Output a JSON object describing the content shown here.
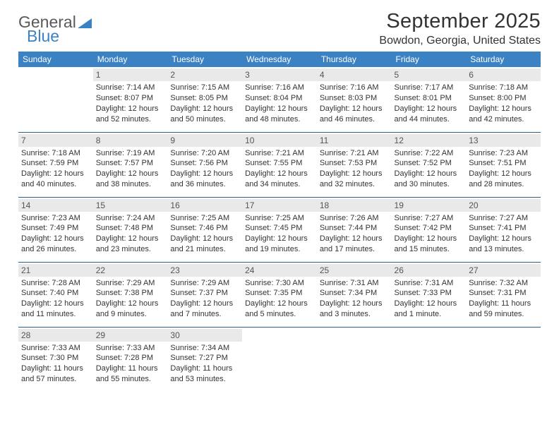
{
  "logo": {
    "line1": "General",
    "line2": "Blue"
  },
  "header": {
    "month_title": "September 2025",
    "location": "Bowdon, Georgia, United States"
  },
  "colors": {
    "header_bg": "#3b82c4",
    "header_text": "#ffffff",
    "divider": "#2f5d8a",
    "daynum_bg": "#e9e9e9",
    "text": "#333333"
  },
  "day_labels": [
    "Sunday",
    "Monday",
    "Tuesday",
    "Wednesday",
    "Thursday",
    "Friday",
    "Saturday"
  ],
  "weeks": [
    [
      {
        "n": "",
        "sr": "",
        "ss": "",
        "dl": ""
      },
      {
        "n": "1",
        "sr": "Sunrise: 7:14 AM",
        "ss": "Sunset: 8:07 PM",
        "dl": "Daylight: 12 hours and 52 minutes."
      },
      {
        "n": "2",
        "sr": "Sunrise: 7:15 AM",
        "ss": "Sunset: 8:05 PM",
        "dl": "Daylight: 12 hours and 50 minutes."
      },
      {
        "n": "3",
        "sr": "Sunrise: 7:16 AM",
        "ss": "Sunset: 8:04 PM",
        "dl": "Daylight: 12 hours and 48 minutes."
      },
      {
        "n": "4",
        "sr": "Sunrise: 7:16 AM",
        "ss": "Sunset: 8:03 PM",
        "dl": "Daylight: 12 hours and 46 minutes."
      },
      {
        "n": "5",
        "sr": "Sunrise: 7:17 AM",
        "ss": "Sunset: 8:01 PM",
        "dl": "Daylight: 12 hours and 44 minutes."
      },
      {
        "n": "6",
        "sr": "Sunrise: 7:18 AM",
        "ss": "Sunset: 8:00 PM",
        "dl": "Daylight: 12 hours and 42 minutes."
      }
    ],
    [
      {
        "n": "7",
        "sr": "Sunrise: 7:18 AM",
        "ss": "Sunset: 7:59 PM",
        "dl": "Daylight: 12 hours and 40 minutes."
      },
      {
        "n": "8",
        "sr": "Sunrise: 7:19 AM",
        "ss": "Sunset: 7:57 PM",
        "dl": "Daylight: 12 hours and 38 minutes."
      },
      {
        "n": "9",
        "sr": "Sunrise: 7:20 AM",
        "ss": "Sunset: 7:56 PM",
        "dl": "Daylight: 12 hours and 36 minutes."
      },
      {
        "n": "10",
        "sr": "Sunrise: 7:21 AM",
        "ss": "Sunset: 7:55 PM",
        "dl": "Daylight: 12 hours and 34 minutes."
      },
      {
        "n": "11",
        "sr": "Sunrise: 7:21 AM",
        "ss": "Sunset: 7:53 PM",
        "dl": "Daylight: 12 hours and 32 minutes."
      },
      {
        "n": "12",
        "sr": "Sunrise: 7:22 AM",
        "ss": "Sunset: 7:52 PM",
        "dl": "Daylight: 12 hours and 30 minutes."
      },
      {
        "n": "13",
        "sr": "Sunrise: 7:23 AM",
        "ss": "Sunset: 7:51 PM",
        "dl": "Daylight: 12 hours and 28 minutes."
      }
    ],
    [
      {
        "n": "14",
        "sr": "Sunrise: 7:23 AM",
        "ss": "Sunset: 7:49 PM",
        "dl": "Daylight: 12 hours and 26 minutes."
      },
      {
        "n": "15",
        "sr": "Sunrise: 7:24 AM",
        "ss": "Sunset: 7:48 PM",
        "dl": "Daylight: 12 hours and 23 minutes."
      },
      {
        "n": "16",
        "sr": "Sunrise: 7:25 AM",
        "ss": "Sunset: 7:46 PM",
        "dl": "Daylight: 12 hours and 21 minutes."
      },
      {
        "n": "17",
        "sr": "Sunrise: 7:25 AM",
        "ss": "Sunset: 7:45 PM",
        "dl": "Daylight: 12 hours and 19 minutes."
      },
      {
        "n": "18",
        "sr": "Sunrise: 7:26 AM",
        "ss": "Sunset: 7:44 PM",
        "dl": "Daylight: 12 hours and 17 minutes."
      },
      {
        "n": "19",
        "sr": "Sunrise: 7:27 AM",
        "ss": "Sunset: 7:42 PM",
        "dl": "Daylight: 12 hours and 15 minutes."
      },
      {
        "n": "20",
        "sr": "Sunrise: 7:27 AM",
        "ss": "Sunset: 7:41 PM",
        "dl": "Daylight: 12 hours and 13 minutes."
      }
    ],
    [
      {
        "n": "21",
        "sr": "Sunrise: 7:28 AM",
        "ss": "Sunset: 7:40 PM",
        "dl": "Daylight: 12 hours and 11 minutes."
      },
      {
        "n": "22",
        "sr": "Sunrise: 7:29 AM",
        "ss": "Sunset: 7:38 PM",
        "dl": "Daylight: 12 hours and 9 minutes."
      },
      {
        "n": "23",
        "sr": "Sunrise: 7:29 AM",
        "ss": "Sunset: 7:37 PM",
        "dl": "Daylight: 12 hours and 7 minutes."
      },
      {
        "n": "24",
        "sr": "Sunrise: 7:30 AM",
        "ss": "Sunset: 7:35 PM",
        "dl": "Daylight: 12 hours and 5 minutes."
      },
      {
        "n": "25",
        "sr": "Sunrise: 7:31 AM",
        "ss": "Sunset: 7:34 PM",
        "dl": "Daylight: 12 hours and 3 minutes."
      },
      {
        "n": "26",
        "sr": "Sunrise: 7:31 AM",
        "ss": "Sunset: 7:33 PM",
        "dl": "Daylight: 12 hours and 1 minute."
      },
      {
        "n": "27",
        "sr": "Sunrise: 7:32 AM",
        "ss": "Sunset: 7:31 PM",
        "dl": "Daylight: 11 hours and 59 minutes."
      }
    ],
    [
      {
        "n": "28",
        "sr": "Sunrise: 7:33 AM",
        "ss": "Sunset: 7:30 PM",
        "dl": "Daylight: 11 hours and 57 minutes."
      },
      {
        "n": "29",
        "sr": "Sunrise: 7:33 AM",
        "ss": "Sunset: 7:28 PM",
        "dl": "Daylight: 11 hours and 55 minutes."
      },
      {
        "n": "30",
        "sr": "Sunrise: 7:34 AM",
        "ss": "Sunset: 7:27 PM",
        "dl": "Daylight: 11 hours and 53 minutes."
      },
      {
        "n": "",
        "sr": "",
        "ss": "",
        "dl": ""
      },
      {
        "n": "",
        "sr": "",
        "ss": "",
        "dl": ""
      },
      {
        "n": "",
        "sr": "",
        "ss": "",
        "dl": ""
      },
      {
        "n": "",
        "sr": "",
        "ss": "",
        "dl": ""
      }
    ]
  ]
}
